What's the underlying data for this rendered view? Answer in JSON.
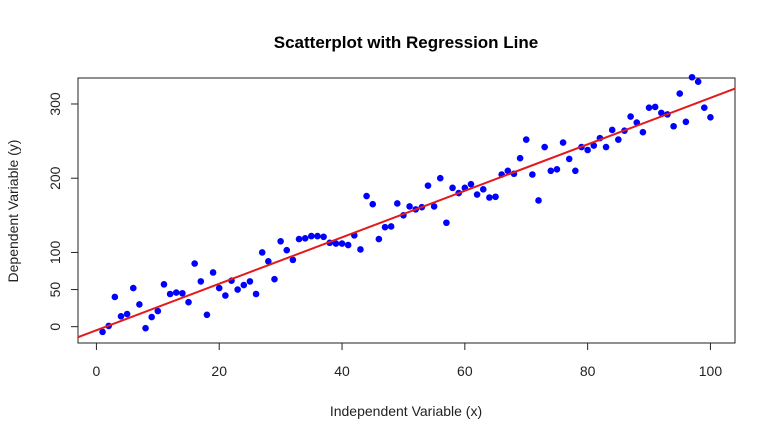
{
  "chart_data": {
    "type": "scatter",
    "title": "Scatterplot with Regression Line",
    "xlabel": "Independent Variable (x)",
    "ylabel": "Dependent Variable (y)",
    "xlim": [
      -3,
      104
    ],
    "ylim": [
      -22,
      335
    ],
    "xticks": [
      0,
      20,
      40,
      60,
      80,
      100
    ],
    "yticks": [
      0,
      50,
      100,
      200,
      300
    ],
    "grid": false,
    "point_color": "#0000ff",
    "line_color": "#e31a1c",
    "regression": {
      "intercept": -4.8,
      "slope": 3.13
    },
    "points": [
      [
        1,
        -7
      ],
      [
        2,
        1
      ],
      [
        3,
        40
      ],
      [
        4,
        14
      ],
      [
        5,
        17
      ],
      [
        6,
        52
      ],
      [
        7,
        30
      ],
      [
        8,
        -2
      ],
      [
        9,
        13
      ],
      [
        10,
        21
      ],
      [
        11,
        57
      ],
      [
        12,
        44
      ],
      [
        13,
        46
      ],
      [
        14,
        45
      ],
      [
        15,
        33
      ],
      [
        16,
        85
      ],
      [
        17,
        61
      ],
      [
        18,
        16
      ],
      [
        19,
        73
      ],
      [
        20,
        52
      ],
      [
        21,
        42
      ],
      [
        22,
        62
      ],
      [
        23,
        50
      ],
      [
        24,
        56
      ],
      [
        25,
        61
      ],
      [
        26,
        44
      ],
      [
        27,
        100
      ],
      [
        28,
        88
      ],
      [
        29,
        64
      ],
      [
        30,
        115
      ],
      [
        31,
        103
      ],
      [
        32,
        90
      ],
      [
        33,
        118
      ],
      [
        34,
        119
      ],
      [
        35,
        122
      ],
      [
        36,
        122
      ],
      [
        37,
        121
      ],
      [
        38,
        113
      ],
      [
        39,
        112
      ],
      [
        40,
        112
      ],
      [
        41,
        110
      ],
      [
        42,
        123
      ],
      [
        43,
        104
      ],
      [
        44,
        176
      ],
      [
        45,
        165
      ],
      [
        46,
        118
      ],
      [
        47,
        134
      ],
      [
        48,
        135
      ],
      [
        49,
        166
      ],
      [
        50,
        150
      ],
      [
        51,
        162
      ],
      [
        52,
        158
      ],
      [
        53,
        161
      ],
      [
        54,
        190
      ],
      [
        55,
        162
      ],
      [
        56,
        200
      ],
      [
        57,
        140
      ],
      [
        58,
        187
      ],
      [
        59,
        180
      ],
      [
        60,
        187
      ],
      [
        61,
        192
      ],
      [
        62,
        178
      ],
      [
        63,
        185
      ],
      [
        64,
        174
      ],
      [
        65,
        175
      ],
      [
        66,
        205
      ],
      [
        67,
        210
      ],
      [
        68,
        206
      ],
      [
        69,
        227
      ],
      [
        70,
        252
      ],
      [
        71,
        205
      ],
      [
        72,
        170
      ],
      [
        73,
        242
      ],
      [
        74,
        210
      ],
      [
        75,
        212
      ],
      [
        76,
        248
      ],
      [
        77,
        226
      ],
      [
        78,
        210
      ],
      [
        79,
        242
      ],
      [
        80,
        238
      ],
      [
        81,
        244
      ],
      [
        82,
        254
      ],
      [
        83,
        242
      ],
      [
        84,
        265
      ],
      [
        85,
        252
      ],
      [
        86,
        264
      ],
      [
        87,
        283
      ],
      [
        88,
        275
      ],
      [
        89,
        262
      ],
      [
        90,
        295
      ],
      [
        91,
        296
      ],
      [
        92,
        288
      ],
      [
        93,
        286
      ],
      [
        94,
        270
      ],
      [
        95,
        314
      ],
      [
        96,
        276
      ],
      [
        97,
        336
      ],
      [
        98,
        330
      ],
      [
        99,
        295
      ],
      [
        100,
        282
      ]
    ]
  }
}
